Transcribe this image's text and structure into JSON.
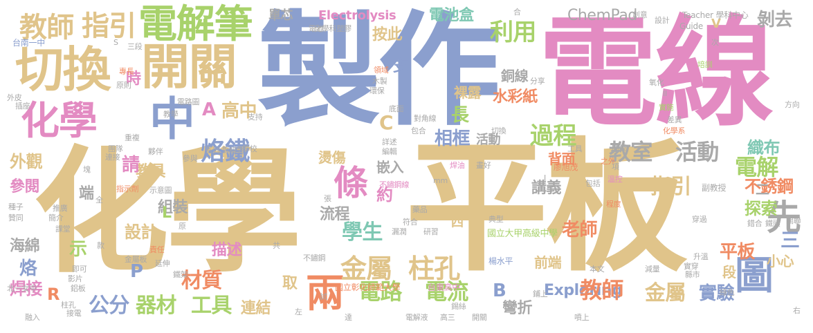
{
  "palette": {
    "tan": "#E0C48A",
    "pink": "#E38BC2",
    "blue": "#8B9FCE",
    "green": "#A8D26B",
    "orange": "#F08B63",
    "teal": "#7FC8B3",
    "gray": "#A9A9A9"
  },
  "words": [
    {
      "text": "製作"
    },
    {
      "text": "電線"
    },
    {
      "text": "化學"
    },
    {
      "text": "平板"
    },
    {
      "text": "切換"
    },
    {
      "text": "開關"
    },
    {
      "text": "電解筆"
    },
    {
      "text": "化學"
    },
    {
      "text": "中"
    },
    {
      "text": "教師"
    },
    {
      "text": "指引"
    },
    {
      "text": "圖"
    },
    {
      "text": "兩"
    },
    {
      "text": "條"
    },
    {
      "text": "先"
    },
    {
      "text": "金屬"
    },
    {
      "text": "柱孔"
    },
    {
      "text": "電路"
    },
    {
      "text": "電流"
    },
    {
      "text": "烙鐵"
    },
    {
      "text": "過程"
    },
    {
      "text": "利用"
    },
    {
      "text": "教室"
    },
    {
      "text": "活動"
    },
    {
      "text": "電解"
    },
    {
      "text": "平板"
    },
    {
      "text": "ChemPad"
    },
    {
      "text": "Electrolysis"
    },
    {
      "text": "電池盒"
    },
    {
      "text": "Exploring"
    },
    {
      "text": "教師"
    },
    {
      "text": "金屬"
    },
    {
      "text": "實驗"
    },
    {
      "text": "器材"
    },
    {
      "text": "工具"
    },
    {
      "text": "公分"
    },
    {
      "text": "材質"
    },
    {
      "text": "學生"
    },
    {
      "text": "搖桿"
    },
    {
      "text": "水彩紙"
    },
    {
      "text": "酸鹼"
    },
    {
      "text": "高中"
    },
    {
      "text": "相框"
    },
    {
      "text": "織布"
    },
    {
      "text": "不銹鋼"
    },
    {
      "text": "探索"
    },
    {
      "text": "指引"
    },
    {
      "text": "老師"
    },
    {
      "text": "講義"
    },
    {
      "text": "設計"
    },
    {
      "text": "組裝"
    },
    {
      "text": "教具"
    },
    {
      "text": "外觀"
    },
    {
      "text": "參閱"
    },
    {
      "text": "海綿"
    },
    {
      "text": "烙"
    },
    {
      "text": "焊接"
    },
    {
      "text": "連結"
    },
    {
      "text": "流程"
    },
    {
      "text": "背面"
    },
    {
      "text": "前端"
    },
    {
      "text": "段"
    },
    {
      "text": "小心"
    },
    {
      "text": "三"
    },
    {
      "text": "二"
    },
    {
      "text": "剝去"
    },
    {
      "text": "按此"
    },
    {
      "text": "銅線"
    },
    {
      "text": "裸露"
    },
    {
      "text": "約"
    },
    {
      "text": "嵌入"
    },
    {
      "text": "燙傷"
    },
    {
      "text": "長"
    },
    {
      "text": "A"
    },
    {
      "text": "C"
    },
    {
      "text": "B"
    },
    {
      "text": "P"
    },
    {
      "text": "R"
    },
    {
      "text": "L"
    },
    {
      "text": "V"
    },
    {
      "text": "請"
    },
    {
      "text": "時"
    },
    {
      "text": "示"
    },
    {
      "text": "端"
    },
    {
      "text": "描述"
    },
    {
      "text": "取"
    },
    {
      "text": "彎折"
    },
    {
      "text": "支"
    },
    {
      "text": "單芯"
    },
    {
      "text": "活動"
    },
    {
      "text": "四"
    },
    {
      "text": "約"
    },
    {
      "text": "台南一中"
    },
    {
      "text": "化學科塑膠"
    },
    {
      "text": "國立大甲高級中學"
    },
    {
      "text": "國立彰化師範大學"
    },
    {
      "text": "台東高中"
    },
    {
      "text": "北一女中"
    },
    {
      "text": "Teacher 學科中心"
    },
    {
      "text": "Guide"
    },
    {
      "text": "楊水平"
    },
    {
      "text": "廖旭茂"
    },
    {
      "text": "副教授"
    },
    {
      "text": "創意"
    },
    {
      "text": "設計"
    },
    {
      "text": "合"
    },
    {
      "text": "次"
    },
    {
      "text": "培訓"
    },
    {
      "text": "氧化"
    },
    {
      "text": "方向"
    },
    {
      "text": "化學系"
    },
    {
      "text": "差異"
    },
    {
      "text": "實施"
    },
    {
      "text": "開發"
    },
    {
      "text": "之外"
    },
    {
      "text": "工具"
    },
    {
      "text": "項"
    },
    {
      "text": "溫控"
    },
    {
      "text": "包括"
    },
    {
      "text": "程度"
    },
    {
      "text": "穿過"
    },
    {
      "text": "錯合"
    },
    {
      "text": "鐵頭"
    },
    {
      "text": "關聯"
    },
    {
      "text": "升溫"
    },
    {
      "text": "實穿"
    },
    {
      "text": "縣市"
    },
    {
      "text": "綠色"
    },
    {
      "text": "右"
    },
    {
      "text": "減量"
    },
    {
      "text": "本文"
    },
    {
      "text": "鋪上"
    },
    {
      "text": "噴上"
    },
    {
      "text": "開關"
    },
    {
      "text": "錫絲"
    },
    {
      "text": "高三"
    },
    {
      "text": "電解液"
    },
    {
      "text": "達"
    },
    {
      "text": "左"
    },
    {
      "text": "試"
    },
    {
      "text": "電池"
    },
    {
      "text": "融入"
    },
    {
      "text": "接電"
    },
    {
      "text": "柱孔"
    },
    {
      "text": "鋁板"
    },
    {
      "text": "影片"
    },
    {
      "text": "即可"
    },
    {
      "text": "延伸"
    },
    {
      "text": "鐵架"
    },
    {
      "text": "金屬板"
    },
    {
      "text": "責任"
    },
    {
      "text": "款"
    },
    {
      "text": "課堂"
    },
    {
      "text": "簡介"
    },
    {
      "text": "推廣"
    },
    {
      "text": "贊同"
    },
    {
      "text": "種子"
    },
    {
      "text": "指示劑"
    },
    {
      "text": "示意圖"
    },
    {
      "text": "塊"
    },
    {
      "text": "全"
    },
    {
      "text": "原"
    },
    {
      "text": "共"
    },
    {
      "text": "不鏽鋼"
    },
    {
      "text": "符合"
    },
    {
      "text": "研習"
    },
    {
      "text": "漏潤"
    },
    {
      "text": "典型"
    },
    {
      "text": "藥品"
    },
    {
      "text": "不鏽鋼線"
    },
    {
      "text": "張"
    },
    {
      "text": "mm"
    },
    {
      "text": "焊油"
    },
    {
      "text": "畫好"
    },
    {
      "text": "詳述"
    },
    {
      "text": "編輯"
    },
    {
      "text": "包合"
    },
    {
      "text": "切換"
    },
    {
      "text": "對角線"
    },
    {
      "text": "底面"
    },
    {
      "text": "支持"
    },
    {
      "text": "學校"
    },
    {
      "text": "系列 對線鉗"
    },
    {
      "text": "參與"
    },
    {
      "text": "夥伴"
    },
    {
      "text": "團隊"
    },
    {
      "text": "重複"
    },
    {
      "text": "連接"
    },
    {
      "text": "插座"
    },
    {
      "text": "外皮"
    },
    {
      "text": "原則"
    },
    {
      "text": "專長"
    },
    {
      "text": "教學"
    },
    {
      "text": "電路圖"
    },
    {
      "text": "領域"
    },
    {
      "text": "木製"
    },
    {
      "text": "環保"
    },
    {
      "text": "分享"
    },
    {
      "text": "II"
    },
    {
      "text": "三段"
    },
    {
      "text": "S"
    },
    {
      "text": "I"
    }
  ]
}
